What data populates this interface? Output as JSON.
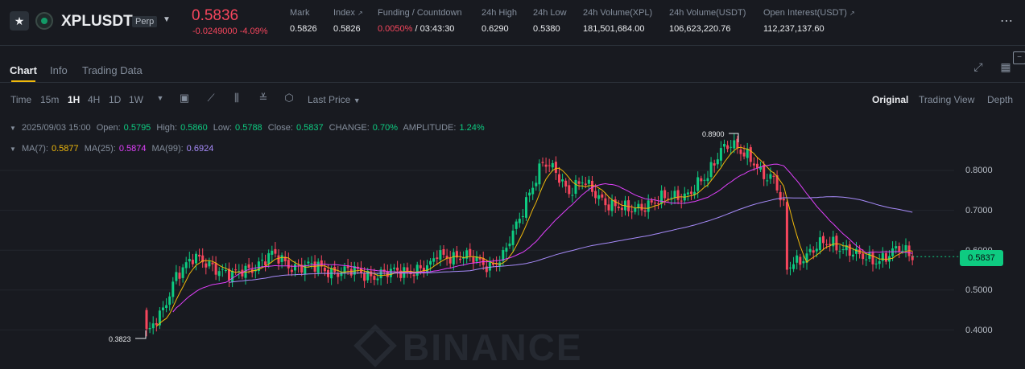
{
  "header": {
    "symbol": "XPLUSDT",
    "contract_type": "Perp",
    "last_price": "0.5836",
    "change": "-0.0249000  -4.09%",
    "stats": [
      {
        "label": "Mark",
        "value": "0.5826",
        "link": false
      },
      {
        "label": "Index",
        "value": "0.5826",
        "link": true
      },
      {
        "label": "Funding / Countdown",
        "value_rate": "0.0050%",
        "value_countdown": " / 03:43:30",
        "link": false
      },
      {
        "label": "24h High",
        "value": "0.6290",
        "link": false
      },
      {
        "label": "24h Low",
        "value": "0.5380",
        "link": false
      },
      {
        "label": "24h Volume(XPL)",
        "value": "181,501,684.00",
        "link": false
      },
      {
        "label": "24h Volume(USDT)",
        "value": "106,623,220.76",
        "link": false
      },
      {
        "label": "Open Interest(USDT)",
        "value": "112,237,137.60",
        "link": true
      }
    ],
    "more_icon": "more-horizontal-icon"
  },
  "tabs": {
    "chart": "Chart",
    "info": "Info",
    "trading_data": "Trading Data"
  },
  "toolbar": {
    "time_label": "Time",
    "intervals": [
      "15m",
      "1H",
      "4H",
      "1D",
      "1W"
    ],
    "active_interval": "1H",
    "price_type": "Last Price",
    "views": [
      "Original",
      "Trading View",
      "Depth"
    ],
    "active_view": "Original"
  },
  "legend": {
    "date": "2025/09/03 15:00",
    "open_label": "Open:",
    "open": "0.5795",
    "high_label": "High:",
    "high": "0.5860",
    "low_label": "Low:",
    "low": "0.5788",
    "close_label": "Close:",
    "close": "0.5837",
    "change_label": "CHANGE:",
    "change": "0.70%",
    "amplitude_label": "AMPLITUDE:",
    "amplitude": "1.24%",
    "ma7_label": "MA(7):",
    "ma7": "0.5877",
    "ma25_label": "MA(25):",
    "ma25": "0.5874",
    "ma99_label": "MA(99):",
    "ma99": "0.6924"
  },
  "watermark": "BINANCE",
  "chart_data": {
    "type": "candlestick",
    "y_ticks": [
      "0.8000",
      "0.7000",
      "0.6000",
      "0.5000",
      "0.4000"
    ],
    "ylim": [
      0.38,
      0.9
    ],
    "current_price": "0.5837",
    "max_marker": "0.8900",
    "min_marker": "0.3823",
    "colors": {
      "up": "#0ecb81",
      "down": "#f6465d",
      "ma7": "#f0b90b",
      "ma25": "#e040fb",
      "ma99": "#a78bfa"
    },
    "anchors": [
      [
        0,
        0.382
      ],
      [
        5,
        0.445
      ],
      [
        9,
        0.545
      ],
      [
        14,
        0.575
      ],
      [
        20,
        0.565
      ],
      [
        26,
        0.532
      ],
      [
        32,
        0.56
      ],
      [
        38,
        0.585
      ],
      [
        44,
        0.562
      ],
      [
        50,
        0.557
      ],
      [
        56,
        0.55
      ],
      [
        62,
        0.545
      ],
      [
        68,
        0.54
      ],
      [
        74,
        0.54
      ],
      [
        80,
        0.552
      ],
      [
        86,
        0.555
      ],
      [
        88,
        0.59
      ],
      [
        92,
        0.588
      ],
      [
        98,
        0.578
      ],
      [
        104,
        0.565
      ],
      [
        108,
        0.58
      ],
      [
        112,
        0.66
      ],
      [
        116,
        0.75
      ],
      [
        120,
        0.815
      ],
      [
        124,
        0.795
      ],
      [
        128,
        0.752
      ],
      [
        132,
        0.77
      ],
      [
        135,
        0.745
      ],
      [
        140,
        0.72
      ],
      [
        146,
        0.695
      ],
      [
        152,
        0.72
      ],
      [
        158,
        0.728
      ],
      [
        164,
        0.745
      ],
      [
        170,
        0.78
      ],
      [
        174,
        0.86
      ],
      [
        177,
        0.872
      ],
      [
        180,
        0.84
      ],
      [
        184,
        0.82
      ],
      [
        187,
        0.795
      ],
      [
        190,
        0.778
      ],
      [
        193,
        0.7
      ],
      [
        194,
        0.55
      ],
      [
        196,
        0.57
      ],
      [
        200,
        0.592
      ],
      [
        204,
        0.61
      ],
      [
        208,
        0.618
      ],
      [
        212,
        0.605
      ],
      [
        216,
        0.58
      ],
      [
        220,
        0.575
      ],
      [
        224,
        0.588
      ],
      [
        228,
        0.6
      ],
      [
        232,
        0.585
      ]
    ]
  }
}
